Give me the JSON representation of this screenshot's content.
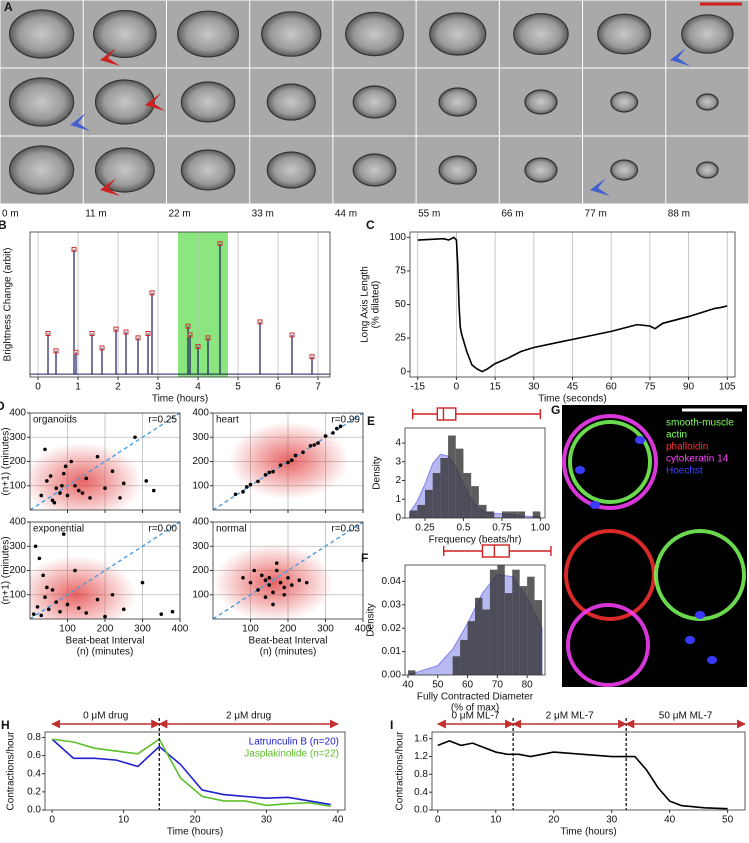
{
  "panel_a": {
    "label": "A",
    "times": [
      "0 m",
      "11 m",
      "22 m",
      "33 m",
      "44 m",
      "55 m",
      "66 m",
      "77 m",
      "88 m"
    ]
  },
  "panel_g": {
    "label": "G",
    "legend": [
      {
        "lines": [
          "smooth-muscle",
          "actin"
        ],
        "color": "#7dff5a"
      },
      {
        "lines": [
          "phalloidin"
        ],
        "color": "#ff3030"
      },
      {
        "lines": [
          "cytokeratin 14"
        ],
        "color": "#ff40ff"
      },
      {
        "lines": [
          "Hoechst"
        ],
        "color": "#4040ff"
      }
    ]
  },
  "chart_data": [
    {
      "type": "spike",
      "panel": "B",
      "xlabel": "Time (hours)",
      "ylabel": "Brightness Change (arbit)",
      "xlim": [
        -0.2,
        7.3
      ],
      "ylim": [
        0,
        100
      ],
      "xticks": [
        0,
        1,
        2,
        3,
        4,
        5,
        6,
        7
      ],
      "grid": true,
      "color": "#1c1c5c",
      "marker_color": "#d03030",
      "highlight": [
        3.5,
        4.75
      ],
      "highlight_color": "#66dd55",
      "x": [
        0.25,
        0.45,
        0.9,
        0.95,
        1.35,
        1.6,
        1.95,
        2.2,
        2.5,
        2.75,
        2.85,
        3.75,
        3.8,
        4.0,
        4.25,
        4.55,
        5.55,
        6.35,
        6.85
      ],
      "values": [
        30,
        18,
        88,
        17,
        30,
        20,
        33,
        31,
        27,
        30,
        58,
        35,
        29,
        21,
        27,
        92,
        38,
        29,
        14
      ]
    },
    {
      "type": "line",
      "panel": "C",
      "xlabel": "Time (seconds)",
      "ylabel": [
        "Long Axis Length",
        "(% dilated)"
      ],
      "xlim": [
        -18,
        108
      ],
      "ylim": [
        -4,
        104
      ],
      "xticks": [
        -15,
        0,
        15,
        30,
        45,
        60,
        75,
        90,
        105
      ],
      "yticks": [
        0,
        25,
        50,
        75,
        100
      ],
      "grid": "x",
      "series": [
        {
          "color": "#000000",
          "x": [
            -15,
            -5,
            -3,
            -1,
            0,
            0.5,
            1,
            1.5,
            2,
            4,
            6,
            8,
            10,
            12,
            15,
            20,
            25,
            30,
            40,
            50,
            60,
            70,
            75,
            77,
            80,
            90,
            100,
            103,
            105
          ],
          "values": [
            98,
            99,
            98,
            100,
            98,
            80,
            50,
            33,
            28,
            15,
            5,
            2,
            0,
            2,
            6,
            10,
            15,
            18,
            22,
            26,
            30,
            35,
            34,
            32,
            36,
            41,
            47,
            48,
            49
          ]
        }
      ]
    },
    {
      "type": "scatter",
      "panel": "D",
      "label": "organoids",
      "stat": "r=0.25",
      "ylabel": [
        "Beat-beat Interval",
        "(n+1) (minutes)"
      ],
      "xlim": [
        0,
        400
      ],
      "ylim": [
        0,
        400
      ],
      "xticks": [
        100,
        200,
        300,
        400
      ],
      "yticks": [
        100,
        200,
        300,
        400
      ],
      "grid": true,
      "x": [
        30,
        45,
        60,
        70,
        80,
        90,
        100,
        110,
        120,
        130,
        150,
        160,
        180,
        200,
        220,
        250,
        280,
        310,
        40,
        65,
        95,
        140,
        55,
        85,
        240,
        330
      ],
      "values": [
        60,
        120,
        40,
        90,
        70,
        150,
        60,
        200,
        100,
        80,
        130,
        50,
        220,
        90,
        160,
        110,
        300,
        120,
        250,
        30,
        180,
        70,
        140,
        100,
        50,
        80
      ]
    },
    {
      "type": "scatter",
      "label": "heart",
      "stat": "r=0.99",
      "xlim": [
        0,
        400
      ],
      "ylim": [
        0,
        400
      ],
      "xticks": [
        100,
        200,
        300,
        400
      ],
      "yticks": [
        100,
        200,
        300,
        400
      ],
      "grid": true,
      "x": [
        60,
        80,
        100,
        120,
        140,
        160,
        180,
        200,
        220,
        240,
        260,
        280,
        300,
        320,
        340,
        150,
        210,
        270,
        90,
        330
      ],
      "values": [
        65,
        75,
        105,
        118,
        145,
        158,
        185,
        196,
        225,
        238,
        265,
        276,
        305,
        318,
        345,
        155,
        205,
        268,
        95,
        336
      ]
    },
    {
      "type": "scatter",
      "label": "exponential",
      "stat": "r=0.00",
      "xlabel": [
        "Beat-beat Interval",
        "(n) (minutes)"
      ],
      "ylabel": [
        "Beat-beat Interval",
        "(n+1) (minutes)"
      ],
      "xlim": [
        0,
        400
      ],
      "ylim": [
        0,
        400
      ],
      "xticks": [
        100,
        200,
        300,
        400
      ],
      "yticks": [
        100,
        200,
        300,
        400
      ],
      "grid": true,
      "x": [
        10,
        20,
        30,
        40,
        50,
        60,
        80,
        100,
        120,
        150,
        180,
        200,
        250,
        300,
        350,
        15,
        35,
        70,
        25,
        130,
        90,
        45,
        220,
        380
      ],
      "values": [
        20,
        50,
        15,
        90,
        40,
        120,
        30,
        60,
        200,
        25,
        80,
        10,
        40,
        150,
        20,
        300,
        180,
        70,
        250,
        45,
        350,
        130,
        100,
        30
      ]
    },
    {
      "type": "scatter",
      "label": "normal",
      "stat": "r=0.03",
      "xlabel": [
        "Beat-beat Interval",
        "(n) (minutes)"
      ],
      "xlim": [
        0,
        400
      ],
      "ylim": [
        0,
        400
      ],
      "xticks": [
        100,
        200,
        300,
        400
      ],
      "yticks": [
        100,
        200,
        300,
        400
      ],
      "grid": true,
      "x": [
        100,
        120,
        130,
        140,
        150,
        150,
        160,
        170,
        180,
        190,
        200,
        210,
        230,
        110,
        140,
        170,
        190,
        250,
        80,
        160
      ],
      "values": [
        150,
        120,
        180,
        160,
        140,
        170,
        110,
        200,
        150,
        130,
        170,
        140,
        160,
        200,
        90,
        230,
        100,
        150,
        170,
        60
      ]
    },
    {
      "type": "histogram",
      "panel": "E",
      "xlabel": "Frequency (beats/hr)",
      "ylabel": "Density",
      "xlim": [
        0.12,
        1.03
      ],
      "ylim": [
        0,
        4.8
      ],
      "xticks": [
        0.25,
        0.5,
        0.75,
        {
          "value": 1,
          "label": "1.00"
        }
      ],
      "yticks": [
        0,
        1,
        2,
        3,
        4
      ],
      "color": "#333333",
      "density_color": "#8080e8",
      "bins": [
        0.15,
        0.2,
        0.25,
        0.3,
        0.35,
        0.4,
        0.45,
        0.5,
        0.55,
        0.6,
        0.65,
        0.7,
        0.75,
        0.8,
        0.85,
        0.9,
        0.95,
        1.0
      ],
      "counts": [
        0.4,
        0.7,
        1.5,
        2.4,
        3.2,
        4.4,
        3.7,
        2.4,
        1.7,
        0.7,
        0.35,
        0,
        0.35,
        0.35,
        0.35,
        0,
        0.35
      ],
      "density": {
        "x": [
          0.15,
          0.2,
          0.25,
          0.3,
          0.35,
          0.4,
          0.45,
          0.5,
          0.55,
          0.6,
          0.65,
          0.7,
          0.75,
          0.8,
          0.85,
          0.9,
          0.95,
          1.0
        ],
        "values": [
          0.3,
          0.9,
          1.8,
          2.9,
          3.4,
          3.3,
          2.7,
          1.8,
          1.0,
          0.5,
          0.3,
          0.25,
          0.22,
          0.2,
          0.15,
          0.1,
          0.08,
          0.05
        ]
      },
      "box": {
        "whislo": 0.17,
        "q1": 0.33,
        "med": 0.37,
        "q3": 0.45,
        "whishi": 1.0,
        "color": "#d02020"
      }
    },
    {
      "type": "histogram",
      "panel": "F",
      "xlabel": [
        "Fully Contracted Diameter",
        "(% of max)"
      ],
      "ylabel": "Density",
      "xlim": [
        39,
        86
      ],
      "ylim": [
        0,
        0.047
      ],
      "xticks": [
        40,
        50,
        60,
        70,
        80
      ],
      "yticks": [
        {
          "value": 0,
          "label": "0.00"
        },
        0.01,
        0.02,
        0.03,
        0.04
      ],
      "color": "#333333",
      "density_color": "#8080e8",
      "bins": [
        40,
        42.5,
        45,
        47.5,
        50,
        52.5,
        55,
        57.5,
        60,
        62.5,
        65,
        67.5,
        70,
        72.5,
        75,
        77.5,
        80,
        82.5,
        85
      ],
      "counts": [
        0.002,
        0,
        0,
        0,
        0,
        0,
        0.008,
        0.015,
        0.023,
        0.033,
        0.028,
        0.045,
        0.047,
        0.035,
        0.045,
        0.038,
        0.042,
        0.032
      ],
      "density": {
        "x": [
          40,
          45,
          50,
          55,
          60,
          65,
          70,
          75,
          80,
          85
        ],
        "values": [
          0.0,
          0.002,
          0.004,
          0.011,
          0.022,
          0.035,
          0.043,
          0.042,
          0.033,
          0.02
        ]
      },
      "box": {
        "whislo": 52,
        "q1": 65,
        "med": 69,
        "q3": 74,
        "whishi": 88,
        "color": "#d02020"
      }
    },
    {
      "type": "line",
      "panel": "H",
      "xlabel": "Time (hours)",
      "ylabel": "Contractions/hour",
      "xlim": [
        -1,
        41
      ],
      "ylim": [
        0,
        0.86
      ],
      "xticks": [
        0,
        10,
        20,
        30,
        40
      ],
      "yticks": [
        {
          "value": 0,
          "label": "0.0"
        },
        0.2,
        0.4,
        0.6,
        0.8
      ],
      "vlines": [
        15
      ],
      "legend": true,
      "annotations": [
        {
          "text": "0 μM drug",
          "x": [
            0,
            15
          ]
        },
        {
          "text": "2 μM drug",
          "x": [
            15,
            40
          ]
        }
      ],
      "series": [
        {
          "name": "Latrunculin B (n=20)",
          "color": "#2020d0",
          "x": [
            0,
            3,
            6,
            9,
            12,
            15,
            18,
            21,
            24,
            27,
            30,
            33,
            36,
            39
          ],
          "values": [
            0.78,
            0.57,
            0.57,
            0.55,
            0.48,
            0.7,
            0.5,
            0.22,
            0.17,
            0.15,
            0.13,
            0.14,
            0.1,
            0.06
          ]
        },
        {
          "name": "Jasplakinolide (n=22)",
          "color": "#5cc02a",
          "x": [
            0,
            3,
            6,
            9,
            12,
            15,
            18,
            21,
            24,
            27,
            30,
            33,
            36,
            39
          ],
          "values": [
            0.78,
            0.75,
            0.68,
            0.65,
            0.62,
            0.78,
            0.35,
            0.15,
            0.1,
            0.1,
            0.05,
            0.07,
            0.08,
            0.04
          ]
        }
      ]
    },
    {
      "type": "line",
      "panel": "I",
      "xlabel": "Time (hours)",
      "ylabel": "Contractions/hour",
      "xlim": [
        -1,
        53
      ],
      "ylim": [
        0,
        1.75
      ],
      "xticks": [
        0,
        10,
        20,
        30,
        40,
        50
      ],
      "yticks": [
        {
          "value": 0,
          "label": "0.0"
        },
        0.4,
        0.8,
        1.2,
        1.6
      ],
      "vlines": [
        13,
        32.5
      ],
      "annotations": [
        {
          "text": "0 μM ML-7",
          "x": [
            0,
            13
          ]
        },
        {
          "text": "2 μM ML-7",
          "x": [
            13,
            32.5
          ]
        },
        {
          "text": "50 μM ML-7",
          "x": [
            32.5,
            53
          ]
        }
      ],
      "series": [
        {
          "color": "#000000",
          "x": [
            0,
            2,
            4,
            6,
            8,
            10,
            12,
            14,
            16,
            20,
            25,
            30,
            34,
            36,
            38,
            40,
            42,
            46,
            50
          ],
          "values": [
            1.45,
            1.55,
            1.45,
            1.5,
            1.4,
            1.3,
            1.25,
            1.25,
            1.2,
            1.3,
            1.25,
            1.2,
            1.2,
            0.9,
            0.5,
            0.2,
            0.1,
            0.05,
            0.03
          ]
        }
      ]
    }
  ]
}
